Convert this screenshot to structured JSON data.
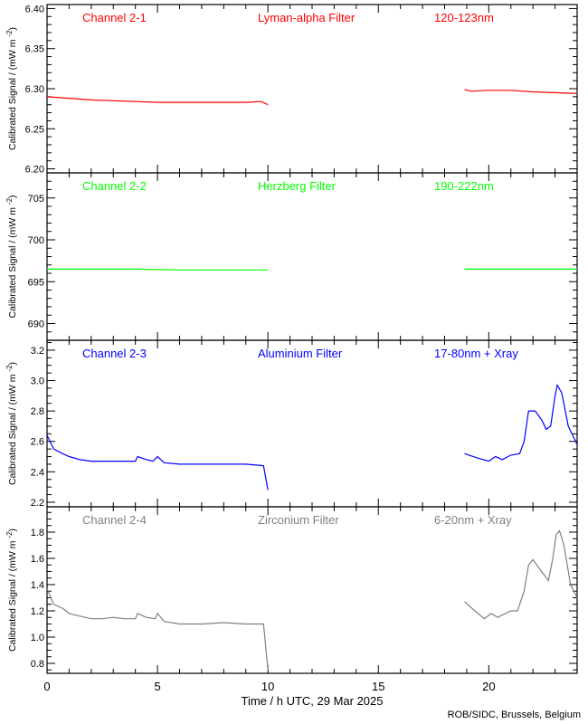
{
  "chart_data": [
    {
      "type": "line",
      "title_parts": [
        "Channel 2-1",
        "Lyman-alpha Filter",
        "120-123nm"
      ],
      "color": "#ff0000",
      "ylabel": "Calibrated Signal / (mW m",
      "ylabel_sup": "-2",
      "ylabel_close": ")",
      "ylim": [
        6.195,
        6.405
      ],
      "yticks": [
        6.2,
        6.25,
        6.3,
        6.35,
        6.4
      ],
      "ytick_labels": [
        "6.20",
        "6.25",
        "6.30",
        "6.35",
        "6.40"
      ],
      "yminor": 0.01,
      "segments": [
        [
          [
            0,
            6.29
          ],
          [
            1,
            6.288
          ],
          [
            2,
            6.286
          ],
          [
            3,
            6.285
          ],
          [
            4,
            6.284
          ],
          [
            5,
            6.283
          ],
          [
            6,
            6.283
          ],
          [
            7,
            6.283
          ],
          [
            8,
            6.283
          ],
          [
            9,
            6.283
          ],
          [
            9.7,
            6.284
          ],
          [
            10,
            6.28
          ]
        ],
        [
          [
            18.9,
            6.299
          ],
          [
            19.2,
            6.297
          ],
          [
            20,
            6.298
          ],
          [
            21,
            6.298
          ],
          [
            22,
            6.296
          ],
          [
            23,
            6.295
          ],
          [
            24,
            6.294
          ]
        ]
      ]
    },
    {
      "type": "line",
      "title_parts": [
        "Channel 2-2",
        "Herzberg Filter",
        "190-222nm"
      ],
      "color": "#00ff00",
      "ylabel": "Calibrated Signal / (mW m",
      "ylabel_sup": "-2",
      "ylabel_close": ")",
      "ylim": [
        688,
        708
      ],
      "yticks": [
        690,
        695,
        700,
        705
      ],
      "ytick_labels": [
        "690",
        "695",
        "700",
        "705"
      ],
      "yminor": 1,
      "segments": [
        [
          [
            0,
            696.5
          ],
          [
            2,
            696.5
          ],
          [
            4,
            696.5
          ],
          [
            6,
            696.4
          ],
          [
            8,
            696.4
          ],
          [
            10,
            696.4
          ]
        ],
        [
          [
            18.9,
            696.5
          ],
          [
            20,
            696.5
          ],
          [
            22,
            696.5
          ],
          [
            24,
            696.5
          ]
        ]
      ]
    },
    {
      "type": "line",
      "title_parts": [
        "Channel 2-3",
        "Aluminium Filter",
        "17-80nm + Xray"
      ],
      "color": "#0000ff",
      "ylabel": "Calibrated Signal / (mW m",
      "ylabel_sup": "-2",
      "ylabel_close": ")",
      "ylim": [
        2.17,
        3.265
      ],
      "yticks": [
        2.2,
        2.4,
        2.6,
        2.8,
        3.0,
        3.2
      ],
      "ytick_labels": [
        "2.2",
        "2.4",
        "2.6",
        "2.8",
        "3.0",
        "3.2"
      ],
      "yminor": 0.05,
      "segments": [
        [
          [
            0,
            2.64
          ],
          [
            0.3,
            2.55
          ],
          [
            0.7,
            2.52
          ],
          [
            1,
            2.5
          ],
          [
            1.5,
            2.48
          ],
          [
            2,
            2.47
          ],
          [
            2.5,
            2.47
          ],
          [
            3,
            2.47
          ],
          [
            3.5,
            2.47
          ],
          [
            4,
            2.47
          ],
          [
            4.1,
            2.5
          ],
          [
            4.5,
            2.48
          ],
          [
            4.8,
            2.47
          ],
          [
            5,
            2.5
          ],
          [
            5.3,
            2.46
          ],
          [
            6,
            2.45
          ],
          [
            7,
            2.45
          ],
          [
            8,
            2.45
          ],
          [
            9,
            2.45
          ],
          [
            9.8,
            2.44
          ],
          [
            10,
            2.28
          ]
        ],
        [
          [
            18.9,
            2.52
          ],
          [
            19.5,
            2.49
          ],
          [
            20,
            2.47
          ],
          [
            20.3,
            2.5
          ],
          [
            20.6,
            2.48
          ],
          [
            21,
            2.51
          ],
          [
            21.4,
            2.52
          ],
          [
            21.6,
            2.6
          ],
          [
            21.8,
            2.8
          ],
          [
            22.1,
            2.8
          ],
          [
            22.4,
            2.74
          ],
          [
            22.6,
            2.68
          ],
          [
            22.8,
            2.7
          ],
          [
            23,
            2.9
          ],
          [
            23.1,
            2.97
          ],
          [
            23.3,
            2.92
          ],
          [
            23.6,
            2.7
          ],
          [
            24,
            2.58
          ]
        ]
      ]
    },
    {
      "type": "line",
      "title_parts": [
        "Channel 2-4",
        "Zirconium Filter",
        "6-20nm + Xray"
      ],
      "color": "#808080",
      "ylabel": "Calibrated Signal / (mW m",
      "ylabel_sup": "-2",
      "ylabel_close": ")",
      "ylim": [
        0.724,
        1.993
      ],
      "yticks": [
        0.8,
        1.0,
        1.2,
        1.4,
        1.6,
        1.8
      ],
      "ytick_labels": [
        "0.8",
        "1.0",
        "1.2",
        "1.4",
        "1.6",
        "1.8"
      ],
      "yminor": 0.05,
      "segments": [
        [
          [
            0,
            1.37
          ],
          [
            0.3,
            1.25
          ],
          [
            0.7,
            1.22
          ],
          [
            1,
            1.18
          ],
          [
            1.5,
            1.16
          ],
          [
            2,
            1.14
          ],
          [
            2.5,
            1.14
          ],
          [
            3,
            1.15
          ],
          [
            3.5,
            1.14
          ],
          [
            4,
            1.14
          ],
          [
            4.1,
            1.18
          ],
          [
            4.5,
            1.15
          ],
          [
            4.9,
            1.14
          ],
          [
            5,
            1.18
          ],
          [
            5.3,
            1.12
          ],
          [
            6,
            1.1
          ],
          [
            7,
            1.1
          ],
          [
            8,
            1.11
          ],
          [
            9,
            1.1
          ],
          [
            9.8,
            1.1
          ],
          [
            10,
            0.75
          ]
        ],
        [
          [
            18.9,
            1.27
          ],
          [
            19.3,
            1.21
          ],
          [
            19.8,
            1.14
          ],
          [
            20.1,
            1.18
          ],
          [
            20.4,
            1.15
          ],
          [
            21,
            1.2
          ],
          [
            21.3,
            1.2
          ],
          [
            21.6,
            1.35
          ],
          [
            21.8,
            1.55
          ],
          [
            22,
            1.59
          ],
          [
            22.3,
            1.52
          ],
          [
            22.7,
            1.43
          ],
          [
            22.9,
            1.6
          ],
          [
            23.05,
            1.78
          ],
          [
            23.2,
            1.81
          ],
          [
            23.4,
            1.7
          ],
          [
            23.7,
            1.4
          ],
          [
            24,
            1.3
          ]
        ]
      ]
    }
  ],
  "xaxis": {
    "xlim": [
      0,
      24
    ],
    "xticks": [
      0,
      5,
      10,
      15,
      20
    ],
    "xtick_labels": [
      "0",
      "5",
      "10",
      "15",
      "20"
    ],
    "xminor": 1,
    "xlabel": "Time / h UTC, 29 Mar 2025"
  },
  "credit": "ROB/SIDC, Brussels, Belgium"
}
